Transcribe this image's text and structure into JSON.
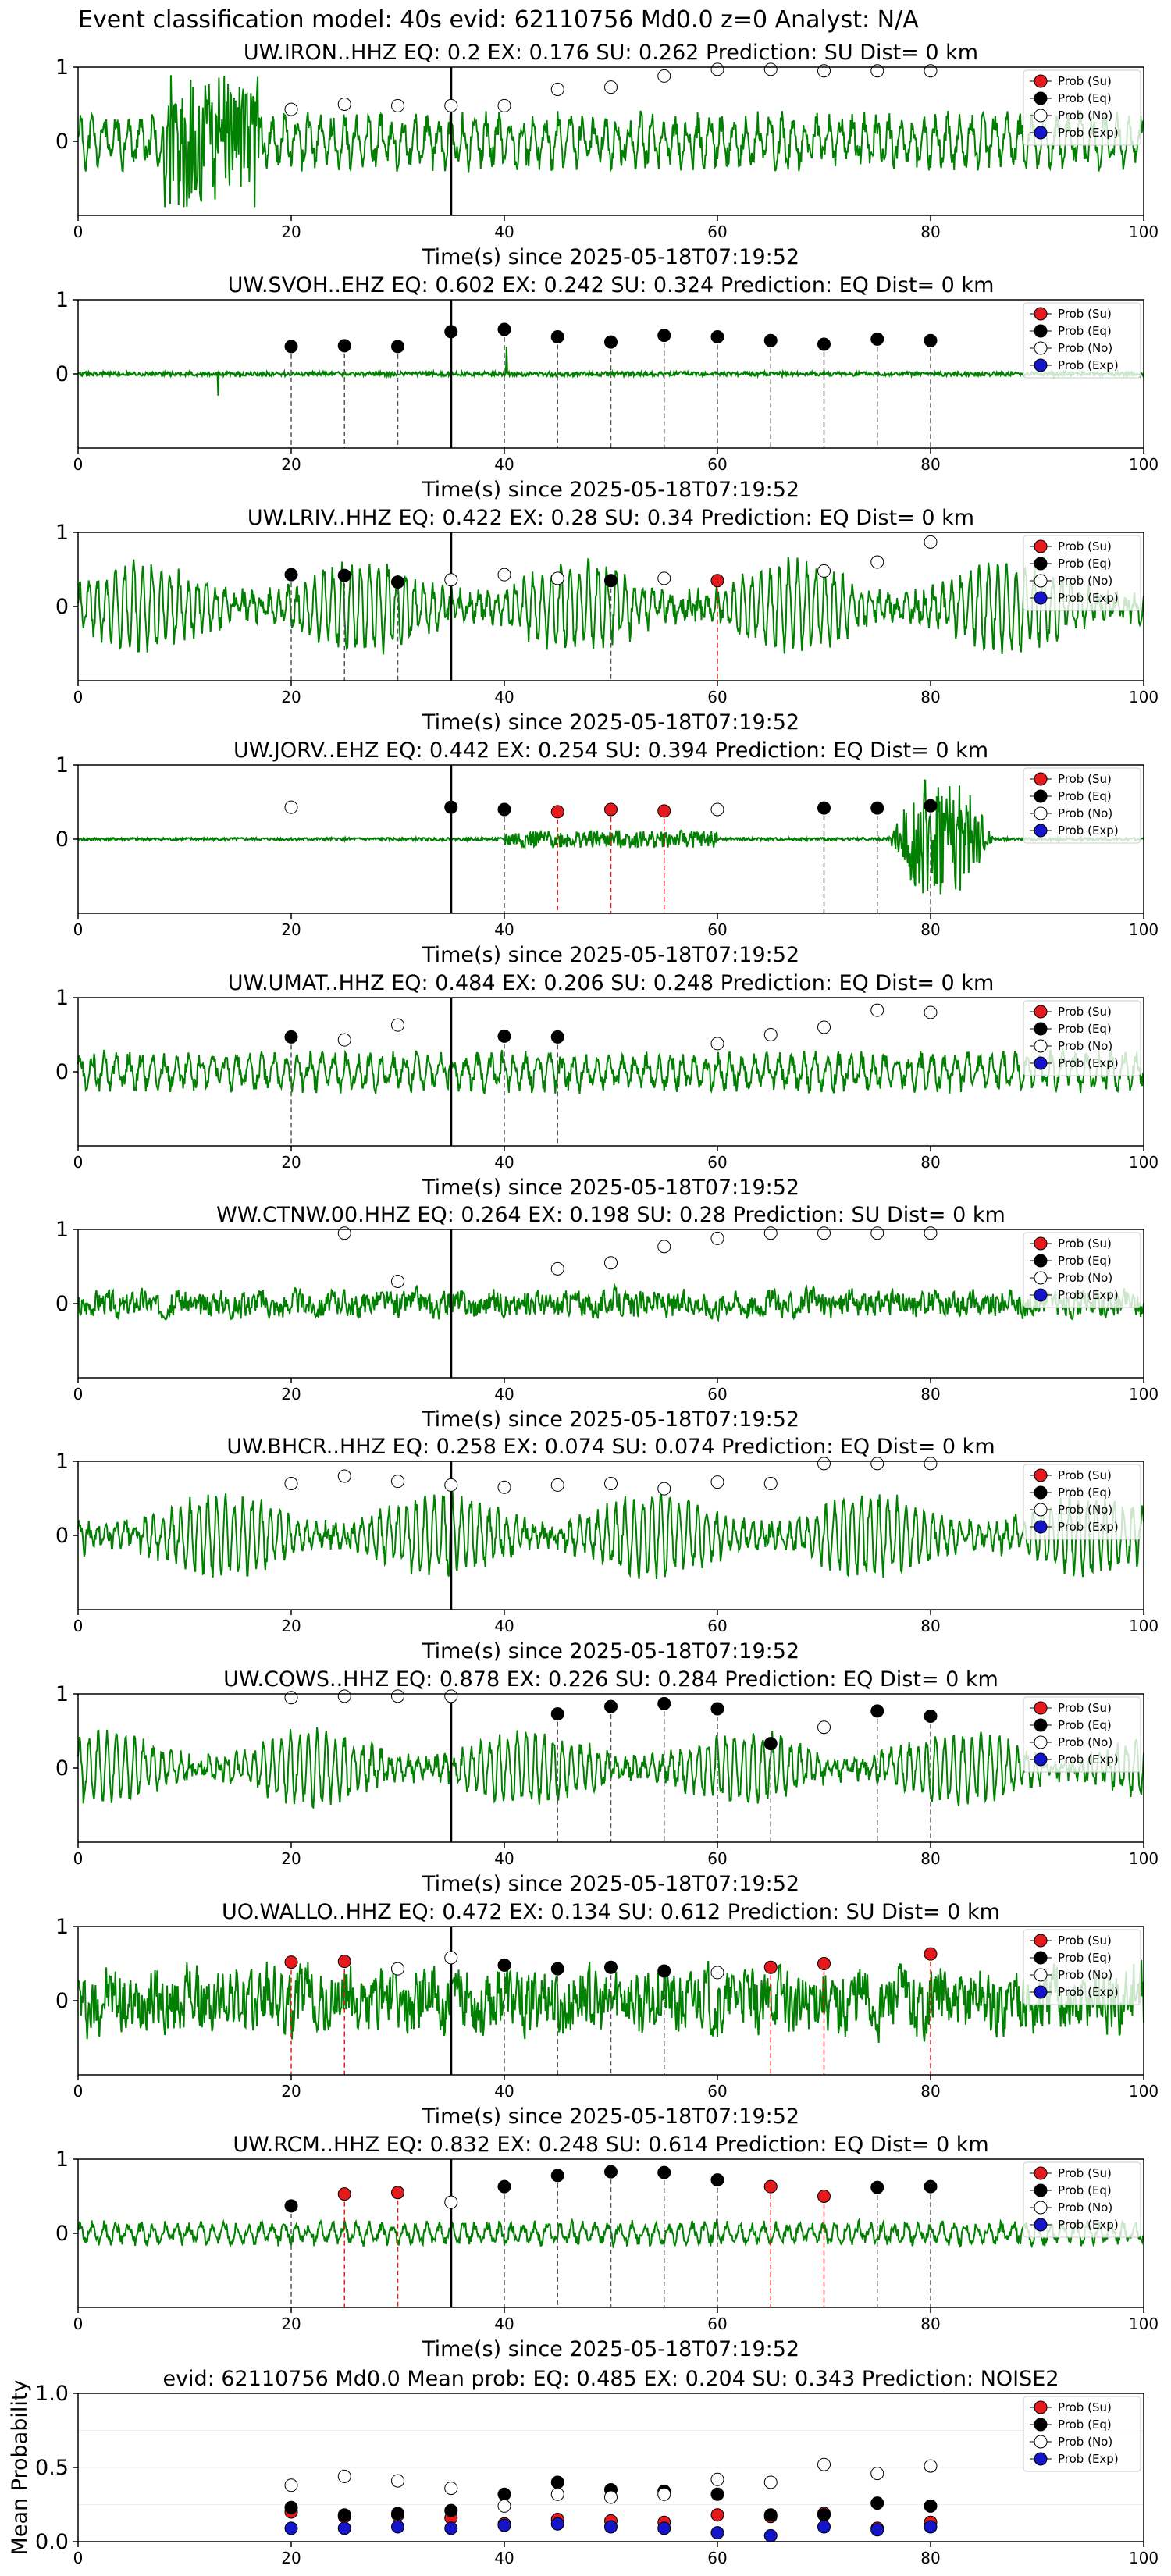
{
  "suptitle": "Event classification model: 40s evid: 62110756 Md0.0 z=0 Analyst: N/A",
  "xlabel": "Time(s) since 2025-05-18T07:19:52",
  "legend": [
    "Prob (Su)",
    "Prob (Eq)",
    "Prob (No)",
    "Prob (Exp)"
  ],
  "colors": {
    "su": "#e41a1c",
    "eq": "#000000",
    "no": "#ffffff",
    "exp": "#1414c8",
    "trace": "#008000",
    "mark_eq": "#555555",
    "mark_su": "#e41a1c",
    "origin": "#000000"
  },
  "chart_data": [
    {
      "type": "line",
      "title": "UW.IRON..HHZ   EQ: 0.2  EX: 0.176  SU: 0.262   Prediction: SU    Dist= 0 km",
      "xlim": [
        0,
        100
      ],
      "ylim": [
        -1,
        1
      ],
      "xticks": [
        0,
        20,
        40,
        60,
        80,
        100
      ],
      "yticks": [
        1,
        0
      ],
      "origin_time": 35,
      "trace": {
        "style": "mixed",
        "amp": 0.42,
        "seed": 11
      },
      "points": [
        {
          "x": 20,
          "y": 0.43,
          "cls": "no"
        },
        {
          "x": 25,
          "y": 0.5,
          "cls": "no"
        },
        {
          "x": 30,
          "y": 0.48,
          "cls": "no"
        },
        {
          "x": 35,
          "y": 0.48,
          "cls": "no"
        },
        {
          "x": 40,
          "y": 0.48,
          "cls": "no"
        },
        {
          "x": 45,
          "y": 0.7,
          "cls": "no"
        },
        {
          "x": 50,
          "y": 0.73,
          "cls": "no"
        },
        {
          "x": 55,
          "y": 0.88,
          "cls": "no"
        },
        {
          "x": 60,
          "y": 0.97,
          "cls": "no"
        },
        {
          "x": 65,
          "y": 0.97,
          "cls": "no"
        },
        {
          "x": 70,
          "y": 0.95,
          "cls": "no"
        },
        {
          "x": 75,
          "y": 0.95,
          "cls": "no"
        },
        {
          "x": 80,
          "y": 0.95,
          "cls": "no"
        }
      ]
    },
    {
      "type": "line",
      "title": "UW.SVOH..EHZ   EQ: 0.602  EX: 0.242  SU: 0.324   Prediction: EQ    Dist= 0 km",
      "xlim": [
        0,
        100
      ],
      "ylim": [
        -1,
        1
      ],
      "xticks": [
        0,
        20,
        40,
        60,
        80,
        100
      ],
      "yticks": [
        1,
        0
      ],
      "origin_time": 35,
      "trace": {
        "style": "flat",
        "amp": 0.06,
        "seed": 23
      },
      "points": [
        {
          "x": 20,
          "y": 0.37,
          "cls": "eq"
        },
        {
          "x": 25,
          "y": 0.38,
          "cls": "eq"
        },
        {
          "x": 30,
          "y": 0.37,
          "cls": "eq"
        },
        {
          "x": 35,
          "y": 0.57,
          "cls": "eq"
        },
        {
          "x": 40,
          "y": 0.6,
          "cls": "eq"
        },
        {
          "x": 45,
          "y": 0.5,
          "cls": "eq"
        },
        {
          "x": 50,
          "y": 0.43,
          "cls": "eq"
        },
        {
          "x": 55,
          "y": 0.52,
          "cls": "eq"
        },
        {
          "x": 60,
          "y": 0.5,
          "cls": "eq"
        },
        {
          "x": 65,
          "y": 0.45,
          "cls": "eq"
        },
        {
          "x": 70,
          "y": 0.4,
          "cls": "eq"
        },
        {
          "x": 75,
          "y": 0.47,
          "cls": "eq"
        },
        {
          "x": 80,
          "y": 0.45,
          "cls": "eq"
        }
      ]
    },
    {
      "type": "line",
      "title": "UW.LRIV..HHZ   EQ: 0.422  EX: 0.28  SU: 0.34   Prediction: EQ    Dist= 0 km",
      "xlim": [
        0,
        100
      ],
      "ylim": [
        -1,
        1
      ],
      "xticks": [
        0,
        20,
        40,
        60,
        80,
        100
      ],
      "yticks": [
        1,
        0
      ],
      "origin_time": 35,
      "trace": {
        "style": "wave",
        "amp": 0.55,
        "seed": 31
      },
      "points": [
        {
          "x": 20,
          "y": 0.43,
          "cls": "eq"
        },
        {
          "x": 25,
          "y": 0.42,
          "cls": "eq"
        },
        {
          "x": 30,
          "y": 0.33,
          "cls": "eq"
        },
        {
          "x": 35,
          "y": 0.36,
          "cls": "no"
        },
        {
          "x": 40,
          "y": 0.43,
          "cls": "no"
        },
        {
          "x": 45,
          "y": 0.38,
          "cls": "no"
        },
        {
          "x": 50,
          "y": 0.35,
          "cls": "eq"
        },
        {
          "x": 55,
          "y": 0.38,
          "cls": "no"
        },
        {
          "x": 60,
          "y": 0.35,
          "cls": "su"
        },
        {
          "x": 70,
          "y": 0.48,
          "cls": "no"
        },
        {
          "x": 75,
          "y": 0.6,
          "cls": "no"
        },
        {
          "x": 80,
          "y": 0.87,
          "cls": "no"
        }
      ]
    },
    {
      "type": "line",
      "title": "UW.JORV..EHZ   EQ: 0.442  EX: 0.254  SU: 0.394   Prediction: EQ    Dist= 0 km",
      "xlim": [
        0,
        100
      ],
      "ylim": [
        -1,
        1
      ],
      "xticks": [
        0,
        20,
        40,
        60,
        80,
        100
      ],
      "yticks": [
        1,
        0
      ],
      "origin_time": 35,
      "trace": {
        "style": "burst",
        "amp": 0.05,
        "seed": 41
      },
      "points": [
        {
          "x": 20,
          "y": 0.43,
          "cls": "no"
        },
        {
          "x": 35,
          "y": 0.43,
          "cls": "eq"
        },
        {
          "x": 40,
          "y": 0.4,
          "cls": "eq"
        },
        {
          "x": 45,
          "y": 0.37,
          "cls": "su"
        },
        {
          "x": 50,
          "y": 0.4,
          "cls": "su"
        },
        {
          "x": 55,
          "y": 0.38,
          "cls": "su"
        },
        {
          "x": 60,
          "y": 0.4,
          "cls": "no"
        },
        {
          "x": 70,
          "y": 0.42,
          "cls": "eq"
        },
        {
          "x": 75,
          "y": 0.42,
          "cls": "eq"
        },
        {
          "x": 80,
          "y": 0.45,
          "cls": "eq"
        }
      ]
    },
    {
      "type": "line",
      "title": "UW.UMAT..HHZ   EQ: 0.484  EX: 0.206  SU: 0.248   Prediction: EQ    Dist= 0 km",
      "xlim": [
        0,
        100
      ],
      "ylim": [
        -1,
        1
      ],
      "xticks": [
        0,
        20,
        40,
        60,
        80,
        100
      ],
      "yticks": [
        1,
        0
      ],
      "origin_time": 35,
      "trace": {
        "style": "mixed",
        "amp": 0.3,
        "seed": 53
      },
      "points": [
        {
          "x": 20,
          "y": 0.47,
          "cls": "eq"
        },
        {
          "x": 25,
          "y": 0.43,
          "cls": "no"
        },
        {
          "x": 30,
          "y": 0.63,
          "cls": "no"
        },
        {
          "x": 40,
          "y": 0.48,
          "cls": "eq"
        },
        {
          "x": 45,
          "y": 0.47,
          "cls": "eq"
        },
        {
          "x": 60,
          "y": 0.38,
          "cls": "no"
        },
        {
          "x": 65,
          "y": 0.5,
          "cls": "no"
        },
        {
          "x": 70,
          "y": 0.6,
          "cls": "no"
        },
        {
          "x": 75,
          "y": 0.83,
          "cls": "no"
        },
        {
          "x": 80,
          "y": 0.8,
          "cls": "no"
        }
      ]
    },
    {
      "type": "line",
      "title": "WW.CTNW.00.HHZ   EQ: 0.264  EX: 0.198  SU: 0.28   Prediction: SU    Dist= 0 km",
      "xlim": [
        0,
        100
      ],
      "ylim": [
        -1,
        1
      ],
      "xticks": [
        0,
        20,
        40,
        60,
        80,
        100
      ],
      "yticks": [
        1,
        0
      ],
      "origin_time": 35,
      "trace": {
        "style": "noise",
        "amp": 0.22,
        "seed": 67
      },
      "points": [
        {
          "x": 25,
          "y": 0.95,
          "cls": "no"
        },
        {
          "x": 30,
          "y": 0.3,
          "cls": "no"
        },
        {
          "x": 45,
          "y": 0.47,
          "cls": "no"
        },
        {
          "x": 50,
          "y": 0.55,
          "cls": "no"
        },
        {
          "x": 55,
          "y": 0.77,
          "cls": "no"
        },
        {
          "x": 60,
          "y": 0.88,
          "cls": "no"
        },
        {
          "x": 65,
          "y": 0.95,
          "cls": "no"
        },
        {
          "x": 70,
          "y": 0.95,
          "cls": "no"
        },
        {
          "x": 75,
          "y": 0.95,
          "cls": "no"
        },
        {
          "x": 80,
          "y": 0.95,
          "cls": "no"
        }
      ]
    },
    {
      "type": "line",
      "title": "UW.BHCR..HHZ   EQ: 0.258  EX: 0.074  SU: 0.074   Prediction: EQ    Dist= 0 km",
      "xlim": [
        0,
        100
      ],
      "ylim": [
        -1,
        1
      ],
      "xticks": [
        0,
        20,
        40,
        60,
        80,
        100
      ],
      "yticks": [
        1,
        0
      ],
      "origin_time": 35,
      "trace": {
        "style": "wave",
        "amp": 0.5,
        "seed": 79
      },
      "points": [
        {
          "x": 20,
          "y": 0.7,
          "cls": "no"
        },
        {
          "x": 25,
          "y": 0.8,
          "cls": "no"
        },
        {
          "x": 30,
          "y": 0.73,
          "cls": "no"
        },
        {
          "x": 35,
          "y": 0.68,
          "cls": "no"
        },
        {
          "x": 40,
          "y": 0.65,
          "cls": "no"
        },
        {
          "x": 45,
          "y": 0.68,
          "cls": "no"
        },
        {
          "x": 50,
          "y": 0.7,
          "cls": "no"
        },
        {
          "x": 55,
          "y": 0.63,
          "cls": "no"
        },
        {
          "x": 60,
          "y": 0.72,
          "cls": "no"
        },
        {
          "x": 65,
          "y": 0.7,
          "cls": "no"
        },
        {
          "x": 70,
          "y": 0.97,
          "cls": "no"
        },
        {
          "x": 75,
          "y": 0.97,
          "cls": "no"
        },
        {
          "x": 80,
          "y": 0.97,
          "cls": "no"
        }
      ]
    },
    {
      "type": "line",
      "title": "UW.COWS..HHZ   EQ: 0.878  EX: 0.226  SU: 0.284   Prediction: EQ    Dist= 0 km",
      "xlim": [
        0,
        100
      ],
      "ylim": [
        -1,
        1
      ],
      "xticks": [
        0,
        20,
        40,
        60,
        80,
        100
      ],
      "yticks": [
        1,
        0
      ],
      "origin_time": 35,
      "trace": {
        "style": "wave",
        "amp": 0.45,
        "seed": 89
      },
      "points": [
        {
          "x": 20,
          "y": 0.95,
          "cls": "no"
        },
        {
          "x": 25,
          "y": 0.97,
          "cls": "no"
        },
        {
          "x": 30,
          "y": 0.97,
          "cls": "no"
        },
        {
          "x": 35,
          "y": 0.97,
          "cls": "no"
        },
        {
          "x": 45,
          "y": 0.73,
          "cls": "eq"
        },
        {
          "x": 50,
          "y": 0.83,
          "cls": "eq"
        },
        {
          "x": 55,
          "y": 0.87,
          "cls": "eq"
        },
        {
          "x": 60,
          "y": 0.8,
          "cls": "eq"
        },
        {
          "x": 65,
          "y": 0.33,
          "cls": "eq"
        },
        {
          "x": 70,
          "y": 0.55,
          "cls": "no"
        },
        {
          "x": 75,
          "y": 0.77,
          "cls": "eq"
        },
        {
          "x": 80,
          "y": 0.7,
          "cls": "eq"
        }
      ]
    },
    {
      "type": "line",
      "title": "UO.WALLO..HHZ   EQ: 0.472  EX: 0.134  SU: 0.612   Prediction: SU    Dist= 0 km",
      "xlim": [
        0,
        100
      ],
      "ylim": [
        -1,
        1
      ],
      "xticks": [
        0,
        20,
        40,
        60,
        80,
        100
      ],
      "yticks": [
        1,
        0
      ],
      "origin_time": 35,
      "trace": {
        "style": "noise",
        "amp": 0.55,
        "seed": 97
      },
      "points": [
        {
          "x": 20,
          "y": 0.52,
          "cls": "su"
        },
        {
          "x": 25,
          "y": 0.53,
          "cls": "su"
        },
        {
          "x": 30,
          "y": 0.43,
          "cls": "no"
        },
        {
          "x": 35,
          "y": 0.58,
          "cls": "no"
        },
        {
          "x": 40,
          "y": 0.48,
          "cls": "eq"
        },
        {
          "x": 45,
          "y": 0.43,
          "cls": "eq"
        },
        {
          "x": 50,
          "y": 0.45,
          "cls": "eq"
        },
        {
          "x": 55,
          "y": 0.4,
          "cls": "eq"
        },
        {
          "x": 60,
          "y": 0.38,
          "cls": "no"
        },
        {
          "x": 65,
          "y": 0.45,
          "cls": "su"
        },
        {
          "x": 70,
          "y": 0.5,
          "cls": "su"
        },
        {
          "x": 80,
          "y": 0.63,
          "cls": "su"
        }
      ]
    },
    {
      "type": "line",
      "title": "UW.RCM..HHZ   EQ: 0.832  EX: 0.248  SU: 0.614   Prediction: EQ    Dist= 0 km",
      "xlim": [
        0,
        100
      ],
      "ylim": [
        -1,
        1
      ],
      "xticks": [
        0,
        20,
        40,
        60,
        80,
        100
      ],
      "yticks": [
        1,
        0
      ],
      "origin_time": 35,
      "trace": {
        "style": "mixed",
        "amp": 0.18,
        "seed": 103
      },
      "points": [
        {
          "x": 20,
          "y": 0.37,
          "cls": "eq"
        },
        {
          "x": 25,
          "y": 0.53,
          "cls": "su"
        },
        {
          "x": 30,
          "y": 0.55,
          "cls": "su"
        },
        {
          "x": 35,
          "y": 0.42,
          "cls": "no"
        },
        {
          "x": 40,
          "y": 0.63,
          "cls": "eq"
        },
        {
          "x": 45,
          "y": 0.78,
          "cls": "eq"
        },
        {
          "x": 50,
          "y": 0.83,
          "cls": "eq"
        },
        {
          "x": 55,
          "y": 0.82,
          "cls": "eq"
        },
        {
          "x": 60,
          "y": 0.72,
          "cls": "eq"
        },
        {
          "x": 65,
          "y": 0.63,
          "cls": "su"
        },
        {
          "x": 70,
          "y": 0.5,
          "cls": "su"
        },
        {
          "x": 75,
          "y": 0.62,
          "cls": "eq"
        },
        {
          "x": 80,
          "y": 0.63,
          "cls": "eq"
        }
      ]
    },
    {
      "type": "scatter",
      "title": "evid: 62110756   Md0.0    Mean prob:    EQ: 0.485   EX: 0.204   SU: 0.343    Prediction: NOISE2",
      "xlim": [
        0,
        100
      ],
      "ylim": [
        0,
        1
      ],
      "xticks": [
        0,
        20,
        40,
        60,
        80,
        100
      ],
      "yticks": [
        1.0,
        0.5,
        0.0
      ],
      "ylabel": "Mean Probability",
      "series": [
        {
          "name": "Prob (Su)",
          "cls": "su",
          "x": [
            20,
            25,
            30,
            35,
            40,
            45,
            50,
            55,
            60,
            65,
            70,
            75,
            80
          ],
          "y": [
            0.2,
            0.17,
            0.18,
            0.16,
            0.12,
            0.15,
            0.14,
            0.13,
            0.18,
            0.17,
            0.19,
            0.09,
            0.13
          ]
        },
        {
          "name": "Prob (Eq)",
          "cls": "eq",
          "x": [
            20,
            25,
            30,
            35,
            40,
            45,
            50,
            55,
            60,
            65,
            70,
            75,
            80
          ],
          "y": [
            0.23,
            0.18,
            0.19,
            0.21,
            0.32,
            0.4,
            0.35,
            0.34,
            0.32,
            0.18,
            0.18,
            0.26,
            0.24
          ]
        },
        {
          "name": "Prob (No)",
          "cls": "no",
          "x": [
            20,
            25,
            30,
            35,
            40,
            45,
            50,
            55,
            60,
            65,
            70,
            75,
            80
          ],
          "y": [
            0.38,
            0.44,
            0.41,
            0.36,
            0.24,
            0.32,
            0.3,
            0.32,
            0.42,
            0.4,
            0.52,
            0.46,
            0.51
          ]
        },
        {
          "name": "Prob (Exp)",
          "cls": "exp",
          "x": [
            20,
            25,
            30,
            35,
            40,
            45,
            50,
            55,
            60,
            65,
            70,
            75,
            80
          ],
          "y": [
            0.09,
            0.09,
            0.1,
            0.09,
            0.11,
            0.12,
            0.1,
            0.09,
            0.06,
            0.04,
            0.1,
            0.08,
            0.1
          ]
        }
      ]
    }
  ]
}
